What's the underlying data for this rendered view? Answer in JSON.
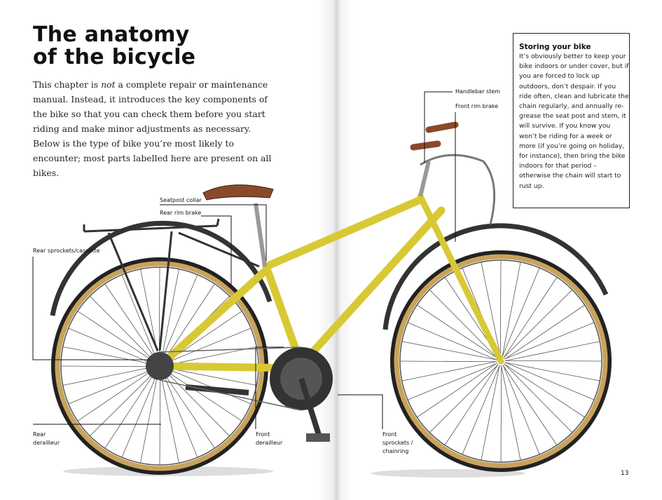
{
  "title_line1": "The anatomy",
  "title_line2": "of the bicycle",
  "intro": {
    "before": "This chapter is ",
    "emphasis": "not",
    "after": " a complete repair or maintenance manual. Instead, it introduces the key components of the bike so that you can check them before you start riding and make minor adjustments as necessary. Below is the type of bike you’re most likely to encounter; most parts labelled here are present on all bikes."
  },
  "sidebar": {
    "heading": "Storing your bike",
    "body": "It’s obviously better to keep your bike indoors or under cover, but if you are forced to lock up outdoors, don’t despair. If you ride often, clean and lubricate the chain regularly, and annually re-grease the seat post and stem, it will survive. If you know you won’t be riding for a week or more (if you’re going on holiday, for instance), then bring the bike indoors for that period – otherwise the chain will start to rust up."
  },
  "labels": {
    "seatpost_collar": "Seatpost collar",
    "rear_rim_brake": "Rear rim brake",
    "rear_sprockets": "Rear sprockets/cassette",
    "rear_derailleur_1": "Rear",
    "rear_derailleur_2": "derailleur",
    "front_derailleur_1": "Front",
    "front_derailleur_2": "derailleur",
    "front_sprockets_1": "Front",
    "front_sprockets_2": "sprockets /",
    "front_sprockets_3": "chainring",
    "handlebar_stem": "Handlebar stem",
    "front_rim_brake": "Front rim brake"
  },
  "page_number": "13",
  "colors": {
    "frame": "#d8c934",
    "tire": "#c8a35c",
    "saddle": "#8a4a2a"
  }
}
